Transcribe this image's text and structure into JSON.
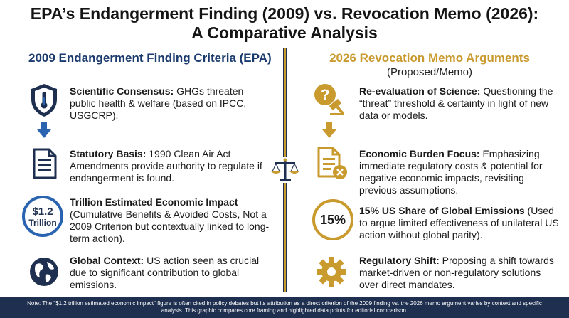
{
  "title": {
    "line1": "EPA’s Endangerment Finding (2009) vs. Revocation Memo (2026):",
    "line2": "A Comparative Analysis"
  },
  "left": {
    "heading": "2009 Endangerment Finding Criteria (EPA)",
    "items": [
      {
        "lead": "Scientific Consensus:",
        "text": " GHGs threaten public health & welfare (based on IPCC, USGCRP).",
        "icon": "shield-thermometer-icon"
      },
      {
        "lead": "Statutory Basis:",
        "text": " 1990 Clean Air Act Amendments provide authority to regulate if endangerment is found.",
        "icon": "document-icon"
      },
      {
        "lead": "Trillion Estimated Economic Impact",
        "text": " (Cumulative Benefits & Avoided Costs, Not a 2009 Criterion but contextually linked to long-term action).",
        "badge_line1": "$1.2",
        "badge_line2": "Trillion"
      },
      {
        "lead": "Global Context:",
        "text": " US action seen as crucial due to significant contribution to global emissions.",
        "icon": "globe-icon"
      }
    ]
  },
  "right": {
    "heading": "2026 Revocation Memo Arguments",
    "subheading": "(Proposed/Memo)",
    "items": [
      {
        "lead": "Re-evaluation of Science:",
        "text": " Questioning the “threat” threshold & certainty in light of new data or models.",
        "icon": "question-gavel-icon"
      },
      {
        "lead": "Economic Burden Focus:",
        "text": " Emphasizing immediate regulatory costs & potential for negative economic impacts, revisiting previous assumptions.",
        "icon": "document-cancel-icon"
      },
      {
        "lead": "15% US Share of Global Emissions",
        "text": " (Used to argue limited effectiveness of unilateral US action without global parity).",
        "badge": "15%"
      },
      {
        "lead": "Regulatory Shift:",
        "text": " Proposing a shift towards market-driven or non-regulatory solutions over direct mandates.",
        "icon": "gear-icon"
      }
    ]
  },
  "footer": {
    "line1": "Note: The \"$1.2 trillion estimated economic impact\" figure is often cited in policy debates but its attribution as a direct criterion of the 2009 finding vs. the 2026 memo argument varies by context and specific",
    "line2": "analysis. This graphic compares core framing and highlighted data points for editorial comparison."
  },
  "colors": {
    "navy": "#1e2f4f",
    "blue": "#2a64b0",
    "gold": "#c99a2e"
  }
}
